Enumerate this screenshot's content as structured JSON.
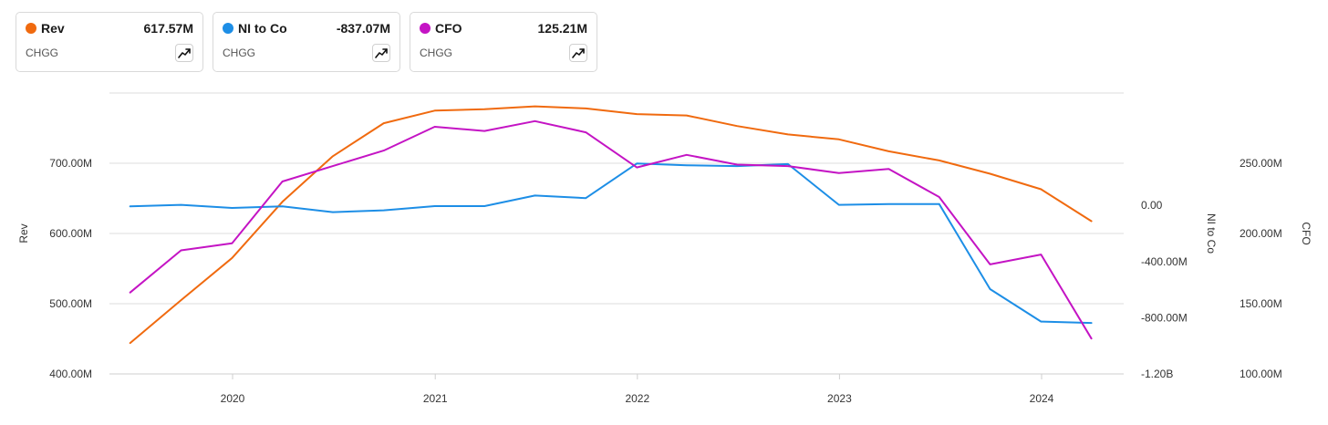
{
  "cards": [
    {
      "label": "Rev",
      "value": "617.57M",
      "ticker": "CHGG",
      "color": "#f06a0f",
      "icon": "trend-icon"
    },
    {
      "label": "NI to Co",
      "value": "-837.07M",
      "ticker": "CHGG",
      "color": "#1d8ee6",
      "icon": "trend-icon"
    },
    {
      "label": "CFO",
      "value": "125.21M",
      "ticker": "CHGG",
      "color": "#c414c4",
      "icon": "trend-icon"
    }
  ],
  "chart_data": {
    "type": "line",
    "x_ticks": [
      "2020",
      "2021",
      "2022",
      "2023",
      "2024"
    ],
    "x": [
      "2019-06-30",
      "2019-09-30",
      "2019-12-31",
      "2020-03-31",
      "2020-06-30",
      "2020-09-30",
      "2020-12-31",
      "2021-03-31",
      "2021-06-30",
      "2021-09-30",
      "2021-12-31",
      "2022-03-31",
      "2022-06-30",
      "2022-09-30",
      "2022-12-31",
      "2023-03-31",
      "2023-06-30",
      "2023-09-30",
      "2023-12-31",
      "2024-03-31"
    ],
    "grid": true,
    "axes": [
      {
        "id": "rev",
        "title": "Rev",
        "side": "left",
        "range": [
          400,
          800
        ],
        "ticks": [
          "400.00M",
          "500.00M",
          "600.00M",
          "700.00M"
        ],
        "tick_values": [
          400,
          500,
          600,
          700
        ]
      },
      {
        "id": "ni",
        "title": "NI to Co",
        "side": "right",
        "range": [
          -1200,
          800
        ],
        "ticks": [
          "-1.20B",
          "-800.00M",
          "-400.00M",
          "0.00"
        ],
        "tick_values": [
          -1200,
          -800,
          -400,
          0
        ]
      },
      {
        "id": "cfo",
        "title": "CFO",
        "side": "right-outer",
        "range": [
          100,
          300
        ],
        "ticks": [
          "100.00M",
          "150.00M",
          "200.00M",
          "250.00M"
        ],
        "tick_values": [
          100,
          150,
          200,
          250
        ]
      }
    ],
    "series": [
      {
        "name": "Rev",
        "axis": "rev",
        "color": "#f06a0f",
        "values": [
          444,
          505,
          565,
          645,
          710,
          757,
          775,
          777,
          781,
          778,
          770,
          768,
          753,
          741,
          734,
          717,
          704,
          685,
          663,
          617.57
        ]
      },
      {
        "name": "NI to Co",
        "axis": "ni",
        "color": "#1d8ee6",
        "values": [
          -7,
          4,
          -18,
          -7,
          -48,
          -35,
          -5,
          -5,
          70,
          52,
          298,
          286,
          280,
          294,
          4,
          10,
          10,
          -596,
          -827,
          -837.07
        ]
      },
      {
        "name": "CFO",
        "axis": "cfo",
        "color": "#c414c4",
        "values": [
          158,
          188,
          193,
          237,
          248,
          259,
          276,
          273,
          280,
          272,
          247,
          256,
          249,
          248,
          243,
          246,
          226,
          178,
          185,
          125.21
        ]
      }
    ]
  }
}
